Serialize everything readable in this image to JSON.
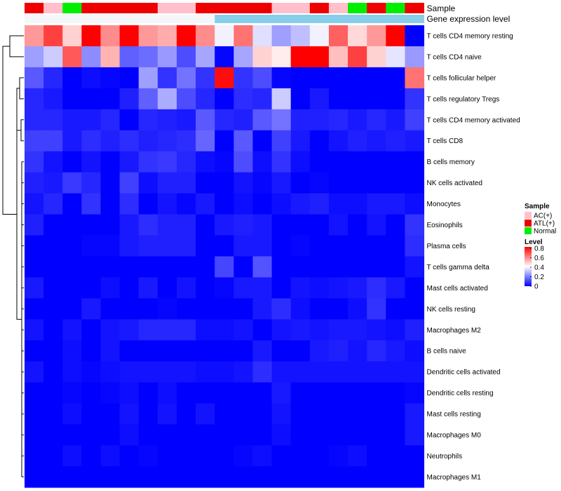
{
  "chart_data": {
    "type": "heatmap",
    "title": "",
    "annotation_rows": [
      "Sample",
      "Gene expression level"
    ],
    "sample_legend": {
      "title": "Sample",
      "entries": [
        {
          "label": "AC(+)",
          "color": "#ffc0cb"
        },
        {
          "label": "ATL(+)",
          "color": "#ee0000"
        },
        {
          "label": "Normal",
          "color": "#00ee00"
        }
      ]
    },
    "level_legend": {
      "title": "Level",
      "ticks": [
        "0.8",
        "0.6",
        "0.4",
        "0.2",
        "0"
      ],
      "range": [
        0,
        0.8
      ],
      "colors": [
        "#0000ff",
        "#ffffff",
        "#ff0000"
      ]
    },
    "sample_groups": [
      "ATL(+)",
      "AC(+)",
      "Normal",
      "ATL(+)",
      "ATL(+)",
      "ATL(+)",
      "ATL(+)",
      "AC(+)",
      "AC(+)",
      "ATL(+)",
      "ATL(+)",
      "ATL(+)",
      "ATL(+)",
      "AC(+)",
      "AC(+)",
      "ATL(+)",
      "AC(+)",
      "Normal",
      "ATL(+)",
      "Normal",
      "ATL(+)"
    ],
    "expression_level": [
      0,
      0,
      0,
      0,
      0,
      0,
      0,
      0,
      0,
      0,
      1,
      1,
      1,
      1,
      1,
      1,
      1,
      1,
      1,
      1,
      1
    ],
    "rows": [
      "T cells CD4 memory resting",
      "T cells CD4 naive",
      "T cells follicular helper",
      "T cells regulatory  Tregs",
      "T cells CD4 memory activated",
      "T cells CD8",
      "B cells memory",
      "NK cells activated",
      "Monocytes",
      "Eosinophils",
      "Plasma cells",
      "T cells gamma delta",
      "Mast cells activated",
      "NK cells resting",
      "Macrophages M2",
      "B cells naive",
      "Dendritic cells activated",
      "Dendritic cells resting",
      "Mast cells resting",
      "Macrophages M0",
      "Neutrophils",
      "Macrophages M1"
    ],
    "values": [
      [
        0.56,
        0.7,
        0.47,
        0.8,
        0.58,
        0.8,
        0.56,
        0.53,
        0.8,
        0.58,
        0.38,
        0.62,
        0.35,
        0.25,
        0.3,
        0.38,
        0.65,
        0.46,
        0.56,
        0.8,
        0.0
      ],
      [
        0.25,
        0.32,
        0.66,
        0.22,
        0.52,
        0.15,
        0.17,
        0.24,
        0.12,
        0.26,
        0.01,
        0.26,
        0.47,
        0.43,
        0.8,
        0.8,
        0.5,
        0.7,
        0.47,
        0.36,
        0.24
      ],
      [
        0.14,
        0.06,
        0.0,
        0.02,
        0.01,
        0.0,
        0.25,
        0.08,
        0.18,
        0.08,
        0.78,
        0.08,
        0.12,
        0.01,
        0.0,
        0.0,
        0.0,
        0.0,
        0.0,
        0.0,
        0.62
      ],
      [
        0.06,
        0.04,
        0.0,
        0.0,
        0.0,
        0.05,
        0.15,
        0.27,
        0.12,
        0.06,
        0.0,
        0.07,
        0.06,
        0.32,
        0.0,
        0.04,
        0.0,
        0.0,
        0.0,
        0.0,
        0.08
      ],
      [
        0.06,
        0.06,
        0.04,
        0.04,
        0.06,
        0.0,
        0.06,
        0.05,
        0.04,
        0.14,
        0.06,
        0.05,
        0.14,
        0.18,
        0.05,
        0.05,
        0.06,
        0.04,
        0.06,
        0.04,
        0.1
      ],
      [
        0.1,
        0.1,
        0.04,
        0.07,
        0.05,
        0.07,
        0.05,
        0.06,
        0.07,
        0.16,
        0.0,
        0.14,
        0.0,
        0.1,
        0.04,
        0.0,
        0.03,
        0.05,
        0.04,
        0.05,
        0.04
      ],
      [
        0.08,
        0.03,
        0.0,
        0.03,
        0.0,
        0.04,
        0.08,
        0.09,
        0.06,
        0.02,
        0.01,
        0.12,
        0.02,
        0.08,
        0.02,
        0.0,
        0.0,
        0.0,
        0.0,
        0.0,
        0.0
      ],
      [
        0.05,
        0.04,
        0.09,
        0.06,
        0.0,
        0.1,
        0.02,
        0.05,
        0.05,
        0.0,
        0.0,
        0.03,
        0.01,
        0.04,
        0.0,
        0.01,
        0.0,
        0.0,
        0.0,
        0.0,
        0.0
      ],
      [
        0.03,
        0.06,
        0.0,
        0.08,
        0.0,
        0.07,
        0.0,
        0.03,
        0.01,
        0.04,
        0.0,
        0.02,
        0.0,
        0.02,
        0.04,
        0.05,
        0.02,
        0.02,
        0.04,
        0.04,
        0.02
      ],
      [
        0.05,
        0.0,
        0.0,
        0.0,
        0.0,
        0.04,
        0.07,
        0.05,
        0.05,
        0.0,
        0.04,
        0.05,
        0.04,
        0.0,
        0.0,
        0.0,
        0.03,
        0.0,
        0.03,
        0.0,
        0.08
      ],
      [
        0.0,
        0.0,
        0.0,
        0.01,
        0.01,
        0.04,
        0.05,
        0.05,
        0.05,
        0.0,
        0.0,
        0.04,
        0.04,
        0.0,
        0.01,
        0.0,
        0.0,
        0.0,
        0.0,
        0.0,
        0.07
      ],
      [
        0.0,
        0.0,
        0.0,
        0.0,
        0.0,
        0.0,
        0.0,
        0.0,
        0.0,
        0.0,
        0.11,
        0.0,
        0.13,
        0.0,
        0.0,
        0.0,
        0.0,
        0.0,
        0.0,
        0.0,
        0.03
      ],
      [
        0.04,
        0.0,
        0.0,
        0.0,
        0.02,
        0.0,
        0.04,
        0.0,
        0.03,
        0.0,
        0.01,
        0.04,
        0.04,
        0.0,
        0.03,
        0.02,
        0.03,
        0.04,
        0.07,
        0.04,
        0.0
      ],
      [
        0.0,
        0.0,
        0.0,
        0.04,
        0.0,
        0.0,
        0.0,
        0.01,
        0.0,
        0.0,
        0.0,
        0.0,
        0.04,
        0.07,
        0.02,
        0.0,
        0.0,
        0.02,
        0.08,
        0.0,
        0.0
      ],
      [
        0.03,
        0.0,
        0.03,
        0.0,
        0.03,
        0.04,
        0.06,
        0.06,
        0.06,
        0.02,
        0.02,
        0.03,
        0.0,
        0.03,
        0.04,
        0.03,
        0.04,
        0.04,
        0.03,
        0.02,
        0.05
      ],
      [
        0.0,
        0.0,
        0.02,
        0.0,
        0.03,
        0.0,
        0.0,
        0.0,
        0.0,
        0.0,
        0.0,
        0.0,
        0.04,
        0.0,
        0.0,
        0.04,
        0.05,
        0.03,
        0.06,
        0.04,
        0.02
      ],
      [
        0.03,
        0.0,
        0.02,
        0.01,
        0.02,
        0.03,
        0.03,
        0.03,
        0.03,
        0.02,
        0.02,
        0.03,
        0.07,
        0.03,
        0.03,
        0.03,
        0.03,
        0.03,
        0.03,
        0.03,
        0.03
      ],
      [
        0.0,
        0.0,
        0.01,
        0.0,
        0.01,
        0.02,
        0.0,
        0.02,
        0.0,
        0.0,
        0.0,
        0.0,
        0.0,
        0.04,
        0.0,
        0.0,
        0.0,
        0.0,
        0.0,
        0.0,
        0.01
      ],
      [
        0.0,
        0.0,
        0.02,
        0.0,
        0.0,
        0.03,
        0.0,
        0.03,
        0.0,
        0.03,
        0.0,
        0.0,
        0.0,
        0.03,
        0.0,
        0.0,
        0.0,
        0.0,
        0.0,
        0.0,
        0.04
      ],
      [
        0.0,
        0.0,
        0.0,
        0.0,
        0.0,
        0.02,
        0.0,
        0.0,
        0.0,
        0.0,
        0.0,
        0.0,
        0.0,
        0.02,
        0.0,
        0.0,
        0.0,
        0.0,
        0.0,
        0.0,
        0.04
      ],
      [
        0.0,
        0.0,
        0.02,
        0.0,
        0.02,
        0.0,
        0.01,
        0.0,
        0.0,
        0.0,
        0.0,
        0.01,
        0.02,
        0.0,
        0.0,
        0.0,
        0.01,
        0.02,
        0.0,
        0.0,
        0.0
      ],
      [
        0.0,
        0.0,
        0.0,
        0.0,
        0.0,
        0.0,
        0.0,
        0.0,
        0.0,
        0.0,
        0.0,
        0.0,
        0.0,
        0.0,
        0.0,
        0.0,
        0.0,
        0.0,
        0.0,
        0.0,
        0.0
      ]
    ]
  }
}
